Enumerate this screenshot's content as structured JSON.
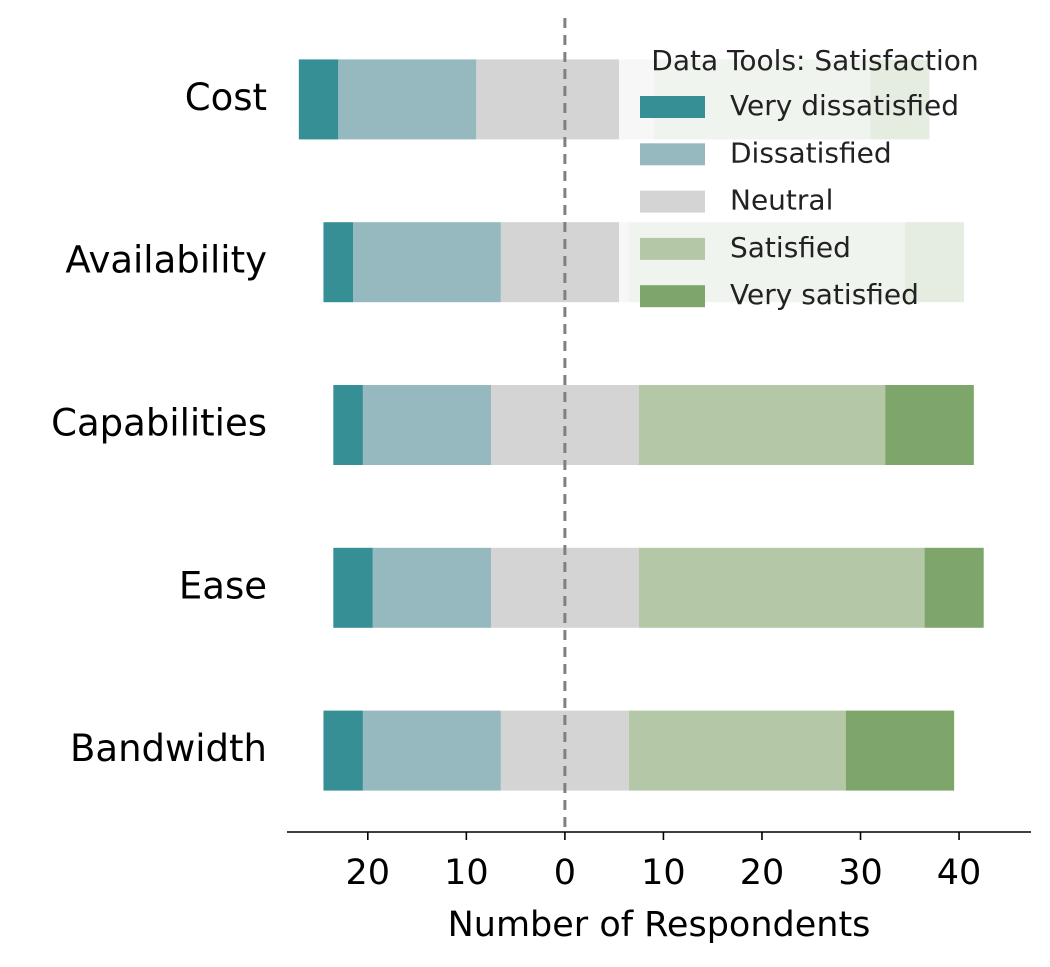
{
  "chart_data": {
    "type": "diverging_bar",
    "xlabel": "Number of Respondents",
    "legend_title": "Data Tools: Satisfaction",
    "categories": [
      "Cost",
      "Availability",
      "Capabilities",
      "Ease",
      "Bandwidth"
    ],
    "series": [
      {
        "name": "Very dissatisfied",
        "color": "#378f96",
        "values": [
          4,
          3,
          3,
          4,
          4
        ]
      },
      {
        "name": "Dissatisfied",
        "color": "#96b9bf",
        "values": [
          14,
          15,
          13,
          12,
          14
        ]
      },
      {
        "name": "Neutral",
        "color": "#d4d4d4",
        "values": [
          18,
          13,
          15,
          15,
          13
        ]
      },
      {
        "name": "Satisfied",
        "color": "#b4c8a8",
        "values": [
          22,
          28,
          25,
          29,
          22
        ]
      },
      {
        "name": "Very satisfied",
        "color": "#7ea66a",
        "values": [
          6,
          6,
          9,
          6,
          11
        ]
      }
    ],
    "xlim": [
      -28.2,
      47.3
    ],
    "xticks": [
      {
        "value": -20,
        "label": "20"
      },
      {
        "value": -10,
        "label": "10"
      },
      0,
      {
        "value": 10,
        "label": "10"
      },
      20,
      30,
      40
    ],
    "legend_position": "upper right"
  }
}
